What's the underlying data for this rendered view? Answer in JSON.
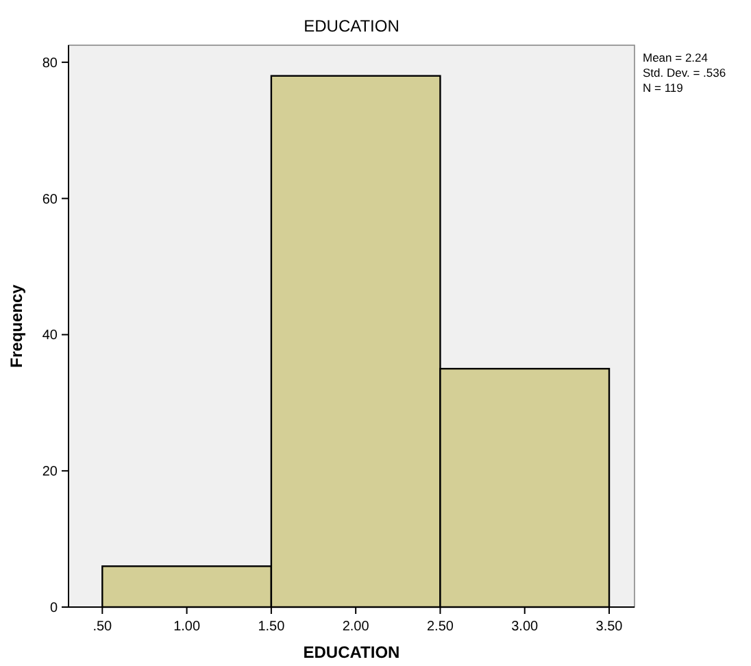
{
  "chart_data": {
    "type": "histogram",
    "title": "EDUCATION",
    "xlabel": "EDUCATION",
    "ylabel": "Frequency",
    "bins": [
      0.5,
      1.5,
      2.5,
      3.5
    ],
    "values": [
      6,
      78,
      35
    ],
    "color": "#d4cf96",
    "xlim": [
      0.3,
      3.65
    ],
    "xticks": [
      {
        "value": 0.5,
        "label": ".50"
      },
      {
        "value": 1,
        "label": "1.00"
      },
      {
        "value": 1.5,
        "label": "1.50"
      },
      {
        "value": 2,
        "label": "2.00"
      },
      {
        "value": 2.5,
        "label": "2.50"
      },
      {
        "value": 3,
        "label": "3.00"
      },
      {
        "value": 3.5,
        "label": "3.50"
      }
    ],
    "ylim": [
      0,
      82.5
    ],
    "yticks": [
      0,
      20,
      40,
      60,
      80
    ],
    "grid": false,
    "annotations": [
      "Mean = 2.24",
      "Std. Dev. = .536",
      "N = 119"
    ]
  }
}
